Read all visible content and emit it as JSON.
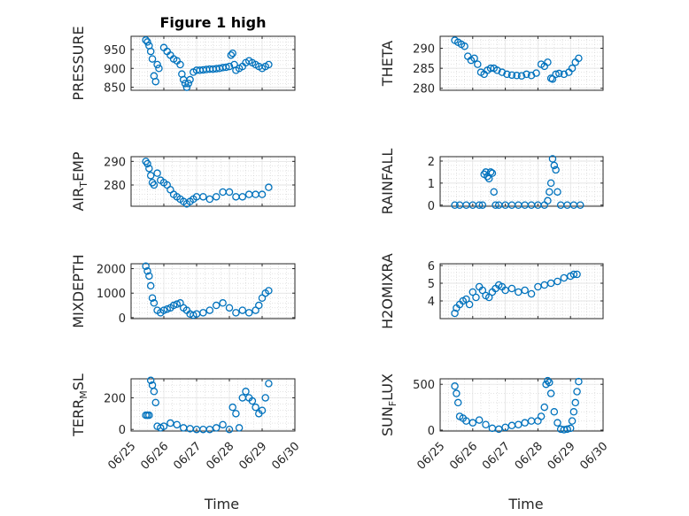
{
  "chart_data": {
    "type": "scatter",
    "title": "Figure 1 high",
    "marker_color": "#0072BD",
    "x_axis": {
      "label": "Time",
      "ticks": [
        "06/25",
        "06/26",
        "06/27",
        "06/28",
        "06/29",
        "06/30"
      ],
      "range_days": [
        0,
        5
      ],
      "grid": true,
      "minor_grid": true
    },
    "panels": [
      {
        "ylabel": "PRESSURE",
        "ylabel_sub": null,
        "yticks": [
          850,
          900,
          950
        ],
        "ylim": [
          842,
          985
        ],
        "title": "Figure 1 high",
        "x": [
          0.45,
          0.5,
          0.55,
          0.6,
          0.65,
          0.7,
          0.75,
          0.8,
          0.85,
          1.0,
          1.1,
          1.2,
          1.3,
          1.4,
          1.5,
          1.55,
          1.6,
          1.65,
          1.7,
          1.75,
          1.8,
          1.9,
          2.0,
          2.1,
          2.2,
          2.3,
          2.4,
          2.5,
          2.6,
          2.7,
          2.8,
          2.9,
          3.0,
          3.05,
          3.1,
          3.15,
          3.2,
          3.3,
          3.4,
          3.5,
          3.6,
          3.7,
          3.8,
          3.9,
          4.0,
          4.1,
          4.2
        ],
        "y": [
          975,
          970,
          960,
          945,
          925,
          880,
          865,
          910,
          900,
          955,
          945,
          935,
          925,
          920,
          910,
          885,
          870,
          860,
          850,
          860,
          870,
          890,
          895,
          895,
          896,
          897,
          898,
          898,
          899,
          900,
          902,
          903,
          905,
          935,
          940,
          910,
          895,
          900,
          905,
          915,
          920,
          915,
          910,
          905,
          900,
          905,
          910
        ]
      },
      {
        "ylabel": "THETA",
        "ylabel_sub": null,
        "yticks": [
          280,
          285,
          290
        ],
        "ylim": [
          279.5,
          293
        ],
        "x": [
          0.45,
          0.55,
          0.65,
          0.75,
          0.85,
          0.95,
          1.05,
          1.15,
          1.25,
          1.35,
          1.45,
          1.55,
          1.65,
          1.75,
          1.9,
          2.05,
          2.2,
          2.35,
          2.5,
          2.65,
          2.8,
          2.95,
          3.1,
          3.2,
          3.3,
          3.4,
          3.45,
          3.55,
          3.65,
          3.8,
          3.95,
          4.05,
          4.15,
          4.25
        ],
        "y": [
          292,
          291.5,
          291,
          290.5,
          288,
          287,
          287.5,
          286,
          284,
          283.5,
          284.5,
          285,
          285,
          284.5,
          284,
          283.5,
          283.3,
          283.2,
          283.1,
          283.5,
          283.2,
          283.8,
          286,
          285.5,
          286.5,
          282.5,
          282.3,
          283.5,
          283.7,
          283.5,
          284,
          285,
          286.5,
          287.5
        ]
      },
      {
        "ylabel": "AIR",
        "ylabel_sub": "T",
        "ylabel_suffix": "EMP",
        "yticks": [
          280,
          290
        ],
        "ylim": [
          271,
          292
        ],
        "x": [
          0.45,
          0.5,
          0.55,
          0.6,
          0.65,
          0.7,
          0.8,
          0.9,
          1.0,
          1.1,
          1.2,
          1.3,
          1.4,
          1.5,
          1.6,
          1.7,
          1.8,
          1.9,
          2.0,
          2.2,
          2.4,
          2.6,
          2.8,
          3.0,
          3.2,
          3.4,
          3.6,
          3.8,
          4.0,
          4.2
        ],
        "y": [
          290,
          289,
          287,
          284,
          281,
          280,
          285,
          282,
          281,
          280,
          278,
          276,
          275,
          274,
          273,
          272,
          273,
          274,
          275,
          275,
          274,
          275,
          277,
          277,
          275,
          275,
          276,
          276,
          276,
          279
        ]
      },
      {
        "ylabel": "RAINFALL",
        "ylabel_sub": null,
        "yticks": [
          0,
          1,
          2
        ],
        "ylim": [
          -0.05,
          2.2
        ],
        "x": [
          0.45,
          0.6,
          0.8,
          1.0,
          1.2,
          1.3,
          1.35,
          1.4,
          1.45,
          1.5,
          1.55,
          1.6,
          1.65,
          1.7,
          1.8,
          2.0,
          2.2,
          2.4,
          2.6,
          2.8,
          3.0,
          3.2,
          3.3,
          3.35,
          3.4,
          3.45,
          3.5,
          3.55,
          3.6,
          3.7,
          3.9,
          4.1,
          4.3
        ],
        "y": [
          0,
          0,
          0,
          0,
          0,
          0,
          1.4,
          1.5,
          1.3,
          1.2,
          1.5,
          1.45,
          0.6,
          0,
          0,
          0,
          0,
          0,
          0,
          0,
          0,
          0,
          0.2,
          0.6,
          1.0,
          2.1,
          1.8,
          1.6,
          0.6,
          0,
          0,
          0,
          0
        ]
      },
      {
        "ylabel": "MIXDEPTH",
        "ylabel_sub": null,
        "yticks": [
          0,
          1000,
          2000
        ],
        "ylim": [
          -40,
          2200
        ],
        "x": [
          0.45,
          0.5,
          0.55,
          0.6,
          0.65,
          0.7,
          0.8,
          0.9,
          1.0,
          1.1,
          1.2,
          1.3,
          1.4,
          1.5,
          1.6,
          1.7,
          1.8,
          1.9,
          2.0,
          2.2,
          2.4,
          2.6,
          2.8,
          3.0,
          3.2,
          3.4,
          3.6,
          3.8,
          3.9,
          4.0,
          4.1,
          4.2
        ],
        "y": [
          2100,
          1900,
          1700,
          1300,
          800,
          600,
          300,
          200,
          300,
          350,
          400,
          500,
          550,
          600,
          400,
          300,
          150,
          100,
          150,
          200,
          300,
          500,
          600,
          400,
          200,
          300,
          200,
          300,
          500,
          800,
          1000,
          1100
        ]
      },
      {
        "ylabel": "H2OMIXRA",
        "ylabel_sub": null,
        "yticks": [
          4,
          5,
          6
        ],
        "ylim": [
          3.0,
          6.1
        ],
        "x": [
          0.45,
          0.5,
          0.6,
          0.7,
          0.8,
          0.9,
          1.0,
          1.1,
          1.2,
          1.3,
          1.4,
          1.5,
          1.6,
          1.7,
          1.8,
          1.9,
          2.0,
          2.2,
          2.4,
          2.6,
          2.8,
          3.0,
          3.2,
          3.4,
          3.6,
          3.8,
          4.0,
          4.1,
          4.2
        ],
        "y": [
          3.3,
          3.6,
          3.8,
          4.0,
          4.1,
          3.8,
          4.5,
          4.2,
          4.8,
          4.6,
          4.3,
          4.2,
          4.5,
          4.7,
          4.9,
          4.8,
          4.6,
          4.7,
          4.5,
          4.6,
          4.4,
          4.8,
          4.9,
          5.0,
          5.1,
          5.3,
          5.4,
          5.5,
          5.5
        ]
      },
      {
        "ylabel": "TERR",
        "ylabel_sub": "M",
        "ylabel_suffix": "SL",
        "yticks": [
          0,
          200
        ],
        "ylim": [
          -10,
          320
        ],
        "x": [
          0.45,
          0.5,
          0.55,
          0.6,
          0.65,
          0.7,
          0.75,
          0.8,
          0.9,
          1.0,
          1.2,
          1.4,
          1.6,
          1.8,
          2.0,
          2.2,
          2.4,
          2.6,
          2.8,
          3.0,
          3.1,
          3.2,
          3.3,
          3.4,
          3.5,
          3.6,
          3.7,
          3.8,
          3.9,
          4.0,
          4.1,
          4.2
        ],
        "y": [
          90,
          90,
          90,
          310,
          280,
          240,
          170,
          20,
          10,
          20,
          40,
          30,
          10,
          5,
          0,
          0,
          0,
          10,
          30,
          0,
          140,
          100,
          10,
          200,
          240,
          200,
          180,
          140,
          100,
          120,
          200,
          290
        ]
      },
      {
        "ylabel": "SUN",
        "ylabel_sub": "F",
        "ylabel_suffix": "LUX",
        "yticks": [
          0,
          500
        ],
        "ylim": [
          -10,
          560
        ],
        "x": [
          0.45,
          0.5,
          0.55,
          0.6,
          0.7,
          0.8,
          1.0,
          1.2,
          1.4,
          1.6,
          1.8,
          2.0,
          2.2,
          2.4,
          2.6,
          2.8,
          3.0,
          3.1,
          3.2,
          3.25,
          3.3,
          3.35,
          3.4,
          3.5,
          3.6,
          3.7,
          3.8,
          3.9,
          4.0,
          4.05,
          4.1,
          4.15,
          4.2,
          4.25
        ],
        "y": [
          480,
          400,
          300,
          150,
          130,
          100,
          80,
          110,
          60,
          20,
          10,
          30,
          50,
          60,
          80,
          100,
          100,
          150,
          250,
          500,
          540,
          520,
          400,
          200,
          80,
          10,
          5,
          10,
          20,
          100,
          200,
          300,
          420,
          530
        ]
      }
    ]
  }
}
